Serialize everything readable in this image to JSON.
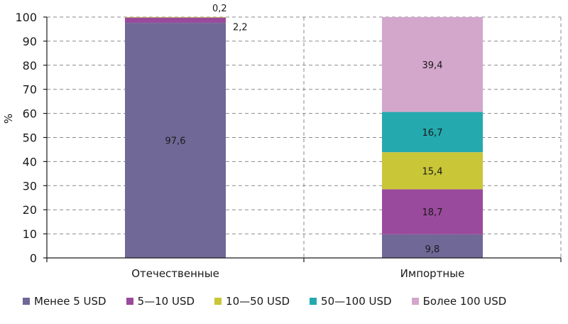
{
  "chart_data": {
    "type": "bar",
    "stacked": true,
    "categories": [
      "Отечественные",
      "Импортные"
    ],
    "series": [
      {
        "name": "Менее 5 USD",
        "color": "#706897",
        "values": [
          97.6,
          9.8
        ],
        "labels": [
          "97,6",
          "9,8"
        ]
      },
      {
        "name": "5—10 USD",
        "color": "#9a4a9c",
        "values": [
          2.2,
          18.7
        ],
        "labels": [
          "2,2",
          "18,7"
        ]
      },
      {
        "name": "10—50 USD",
        "color": "#c9c637",
        "values": [
          0.2,
          15.4
        ],
        "labels": [
          "0,2",
          "15,4"
        ]
      },
      {
        "name": "50—100 USD",
        "color": "#24a9ae",
        "values": [
          0,
          16.7
        ],
        "labels": [
          "",
          "16,7"
        ]
      },
      {
        "name": "Более 100 USD",
        "color": "#d3a6cb",
        "values": [
          0,
          39.4
        ],
        "labels": [
          "",
          "39,4"
        ]
      }
    ],
    "ylabel": "%",
    "ylim": [
      0,
      100
    ],
    "yticks": [
      "0",
      "10",
      "20",
      "30",
      "40",
      "50",
      "60",
      "70",
      "80",
      "90",
      "100"
    ],
    "grid": true,
    "legend_position": "bottom"
  }
}
